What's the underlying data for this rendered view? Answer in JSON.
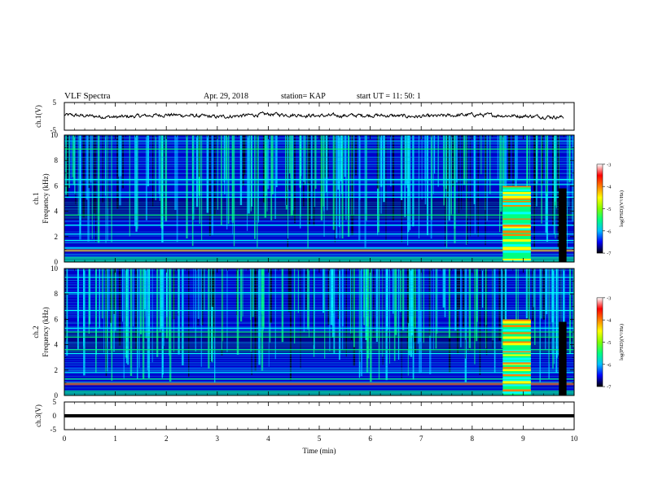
{
  "header": {
    "title": "VLF Spectra",
    "date": "Apr. 29, 2018",
    "station": "station= KAP",
    "start": "start  UT =   11: 50: 1"
  },
  "colors": {
    "colormap": [
      "#00008b",
      "#0000ff",
      "#00a0ff",
      "#00ffff",
      "#00ff80",
      "#ffff00",
      "#ff8000",
      "#ff0000",
      "#ffffff"
    ],
    "trace": "#000000",
    "spectrogram_background": "#00008b"
  },
  "chart_data": [
    {
      "type": "line",
      "panel": "ch1-waveform",
      "ylabel": "ch.1(V)",
      "ylim": [
        -5,
        5
      ],
      "yticks": [
        "5",
        "-5"
      ],
      "xlim": [
        0,
        10
      ],
      "series": [
        {
          "x": [
            0,
            1,
            2,
            3,
            4,
            5,
            6,
            7,
            8,
            9,
            9.8
          ],
          "values": [
            0.5,
            -0.3,
            0.6,
            -0.2,
            0.8,
            0.2,
            0.4,
            -0.1,
            0.6,
            0.1,
            -0.3
          ]
        }
      ]
    },
    {
      "type": "heatmap",
      "panel": "ch1-spectrogram",
      "ylabel": "ch.1\nFrequency (kHz)",
      "ylim": [
        0,
        10
      ],
      "yticks": [
        "0",
        "2",
        "4",
        "6",
        "8",
        "10"
      ],
      "xlim": [
        0,
        10
      ],
      "colorbar": {
        "label": "log(PSD)(V²/Hz)",
        "range": [
          -7,
          -3
        ],
        "ticks": [
          "-3",
          "-4",
          "-5",
          "-6",
          "-7"
        ]
      },
      "bursts": [
        {
          "start_min": 8.6,
          "end_min": 9.15
        }
      ],
      "narrowband_lines_khz": [
        0.9,
        1.1,
        1.7,
        2.2,
        2.9,
        3.7,
        5.1,
        5.5,
        6.1,
        6.5,
        8.9
      ]
    },
    {
      "type": "heatmap",
      "panel": "ch2-spectrogram",
      "ylabel": "ch.2\nFrequency (kHz)",
      "ylim": [
        0,
        10
      ],
      "yticks": [
        "0",
        "2",
        "4",
        "6",
        "8",
        "10"
      ],
      "xlim": [
        0,
        10
      ],
      "colorbar": {
        "label": "log(PSD)(V²/Hz)",
        "range": [
          -7,
          -3
        ],
        "ticks": [
          "-3",
          "-4",
          "-5",
          "-6",
          "-7"
        ]
      },
      "bursts": [
        {
          "start_min": 8.6,
          "end_min": 9.15
        }
      ],
      "narrowband_lines_khz": [
        1.3,
        1.8,
        3.3,
        3.6,
        4.6,
        5.0,
        5.3,
        6.7,
        8.1,
        9.3
      ]
    },
    {
      "type": "line",
      "panel": "ch3-waveform",
      "ylabel": "ch.3(V)",
      "ylim": [
        -5,
        5
      ],
      "yticks": [
        "5",
        "0",
        "-5"
      ],
      "xlim": [
        0,
        10
      ],
      "series": [
        {
          "x": [
            0,
            10
          ],
          "values": [
            0,
            0
          ]
        }
      ]
    }
  ],
  "x_axis": {
    "label": "Time (min)",
    "range": [
      0,
      10
    ],
    "ticks": [
      "0",
      "1",
      "2",
      "3",
      "4",
      "5",
      "6",
      "7",
      "8",
      "9",
      "10"
    ]
  }
}
